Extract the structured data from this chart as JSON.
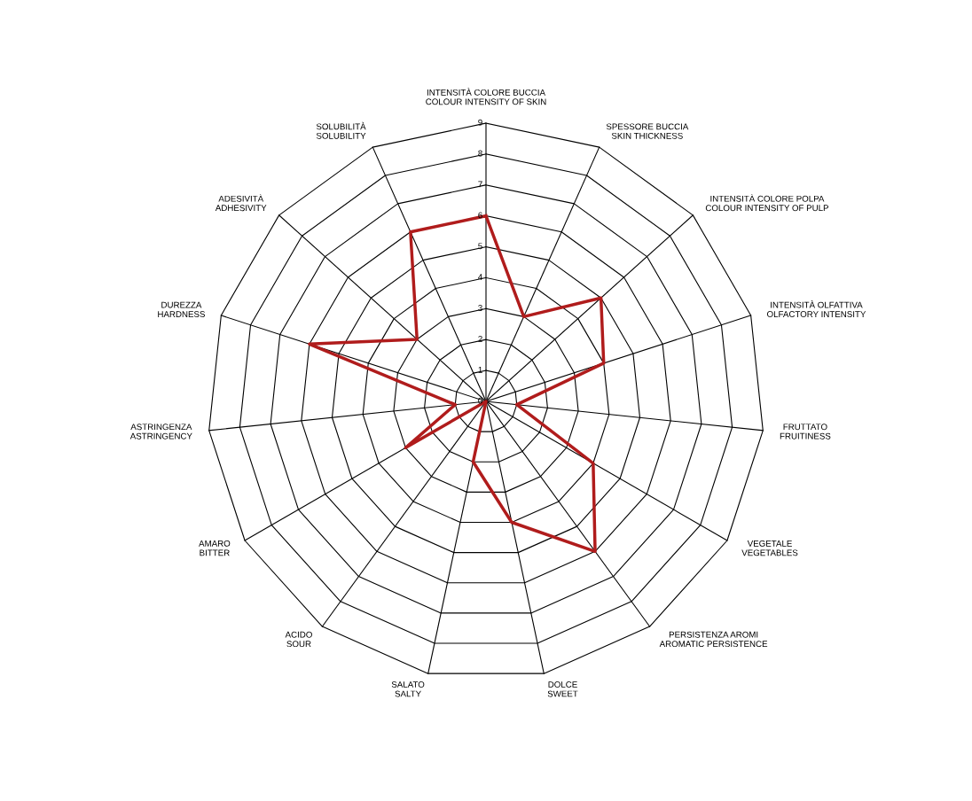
{
  "chart_data": {
    "type": "radar",
    "categories": [
      "INTENSITÀ COLORE BUCCIA\nCOLOUR INTENSITY OF SKIN",
      "SPESSORE BUCCIA\nSKIN THICKNESS",
      "INTENSITÀ COLORE POLPA\nCOLOUR INTENSITY OF PULP",
      "INTENSITÀ OLFATTIVA\nOLFACTORY INTENSITY",
      "FRUTTATO\nFRUITINESS",
      "VEGETALE\nVEGETABLES",
      "PERSISTENZA AROMI\nAROMATIC PERSISTENCE",
      "DOLCE\nSWEET",
      "SALATO\nSALTY",
      "ACIDO\nSOUR",
      "AMARO\nBITTER",
      "ASTRINGENZA\nASTRINGENCY",
      "DUREZZA\nHARDNESS",
      "ADESIVITÀ\nADHESIVITY",
      "SOLUBILITÀ\nSOLUBILITY"
    ],
    "series": [
      {
        "color": "#b01c1c",
        "values": [
          6,
          3,
          5,
          4,
          1,
          4,
          6,
          4,
          2,
          0,
          3,
          1,
          6,
          3,
          6
        ]
      }
    ],
    "ylim": [
      0,
      9
    ],
    "yticks": [
      0,
      1,
      2,
      3,
      4,
      5,
      6,
      7,
      8,
      9
    ],
    "grid": true,
    "marker": "none",
    "line_style": "solid"
  }
}
